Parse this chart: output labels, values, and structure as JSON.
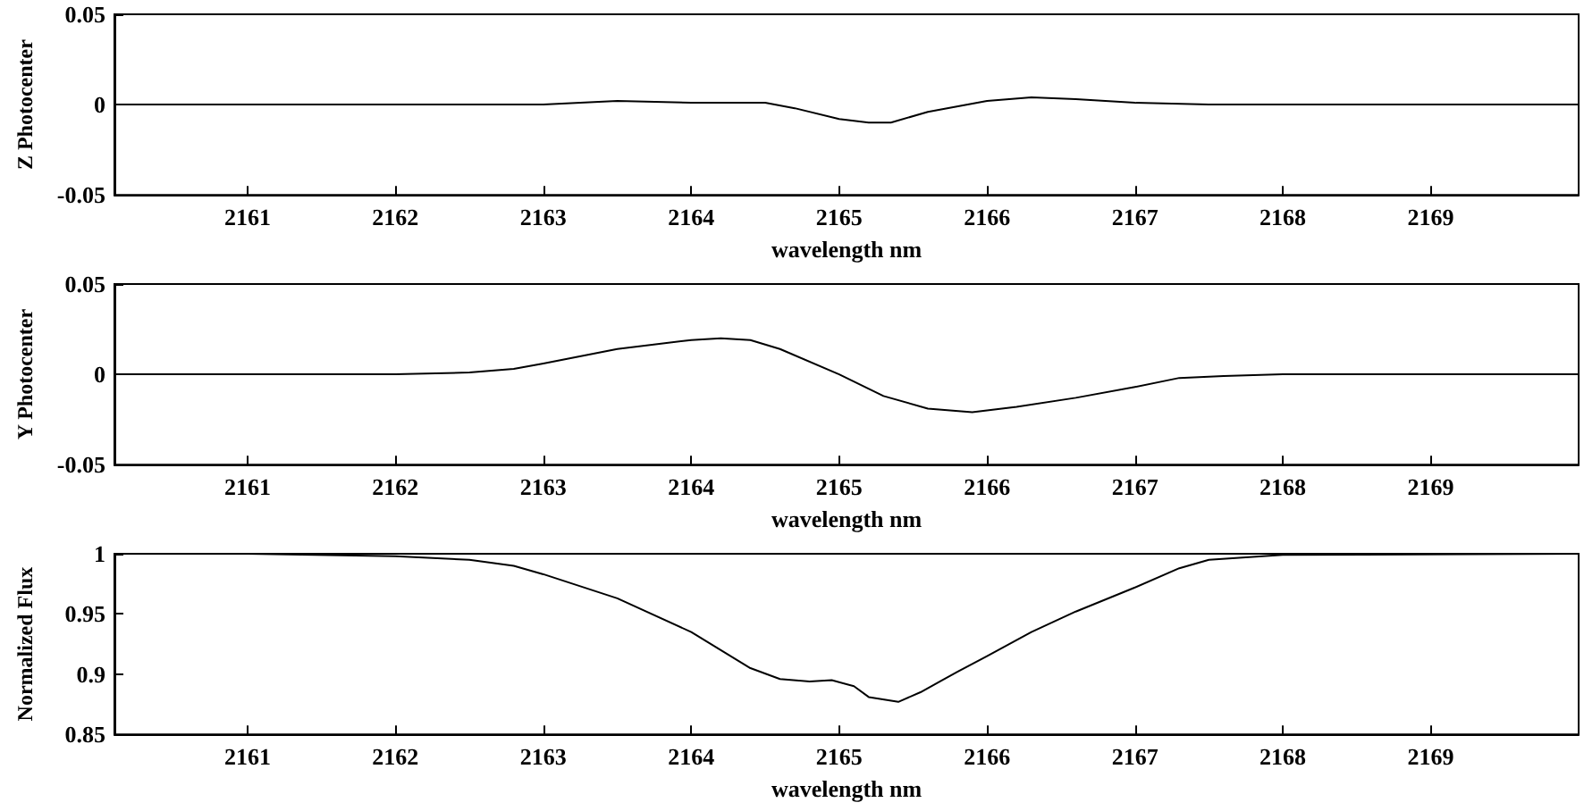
{
  "chart_data": [
    {
      "type": "line",
      "xlabel": "wavelength nm",
      "ylabel": "Z Photocenter",
      "xlim": [
        2160.1,
        2170
      ],
      "xticks": [
        2161,
        2162,
        2163,
        2164,
        2165,
        2166,
        2167,
        2168,
        2169
      ],
      "ylim": [
        -0.05,
        0.05
      ],
      "yticks": [
        -0.05,
        0,
        0.05
      ],
      "grid": false,
      "marker": "none",
      "line_style": "solid",
      "series": [
        {
          "color": "#000000",
          "x": [
            2160.1,
            2162,
            2163,
            2163.5,
            2164,
            2164.5,
            2164.7,
            2165,
            2165.2,
            2165.35,
            2165.6,
            2166,
            2166.3,
            2166.6,
            2167,
            2167.5,
            2170
          ],
          "values": [
            0,
            0,
            0,
            0.002,
            0.001,
            0.001,
            -0.002,
            -0.008,
            -0.01,
            -0.01,
            -0.004,
            0.002,
            0.004,
            0.003,
            0.001,
            0,
            0
          ]
        }
      ]
    },
    {
      "type": "line",
      "xlabel": "wavelength nm",
      "ylabel": "Y Photocenter",
      "xlim": [
        2160.1,
        2170
      ],
      "xticks": [
        2161,
        2162,
        2163,
        2164,
        2165,
        2166,
        2167,
        2168,
        2169
      ],
      "ylim": [
        -0.05,
        0.05
      ],
      "yticks": [
        -0.05,
        0,
        0.05
      ],
      "grid": false,
      "marker": "none",
      "line_style": "solid",
      "series": [
        {
          "color": "#000000",
          "x": [
            2160.1,
            2162,
            2162.5,
            2162.8,
            2163,
            2163.5,
            2164,
            2164.2,
            2164.4,
            2164.6,
            2165,
            2165.3,
            2165.6,
            2165.9,
            2166.2,
            2166.6,
            2167,
            2167.3,
            2167.6,
            2168,
            2170
          ],
          "values": [
            0,
            0,
            0.001,
            0.003,
            0.006,
            0.014,
            0.019,
            0.02,
            0.019,
            0.014,
            0,
            -0.012,
            -0.019,
            -0.021,
            -0.018,
            -0.013,
            -0.007,
            -0.002,
            -0.001,
            0,
            0
          ]
        }
      ]
    },
    {
      "type": "line",
      "xlabel": "wavelength nm",
      "ylabel": "Normalized Flux",
      "xlim": [
        2160.1,
        2170
      ],
      "xticks": [
        2161,
        2162,
        2163,
        2164,
        2165,
        2166,
        2167,
        2168,
        2169
      ],
      "ylim": [
        0.85,
        1
      ],
      "yticks": [
        0.85,
        0.9,
        0.95,
        1
      ],
      "grid": false,
      "marker": "none",
      "line_style": "solid",
      "series": [
        {
          "color": "#000000",
          "x": [
            2160.1,
            2161,
            2162,
            2162.5,
            2162.8,
            2163,
            2163.5,
            2164,
            2164.4,
            2164.6,
            2164.8,
            2164.95,
            2165.1,
            2165.2,
            2165.4,
            2165.55,
            2165.8,
            2166,
            2166.3,
            2166.6,
            2167,
            2167.3,
            2167.5,
            2168,
            2170
          ],
          "values": [
            1,
            1,
            0.998,
            0.995,
            0.99,
            0.983,
            0.963,
            0.935,
            0.905,
            0.896,
            0.894,
            0.895,
            0.89,
            0.881,
            0.877,
            0.885,
            0.902,
            0.915,
            0.935,
            0.952,
            0.972,
            0.988,
            0.995,
            0.999,
            1
          ]
        }
      ]
    }
  ]
}
